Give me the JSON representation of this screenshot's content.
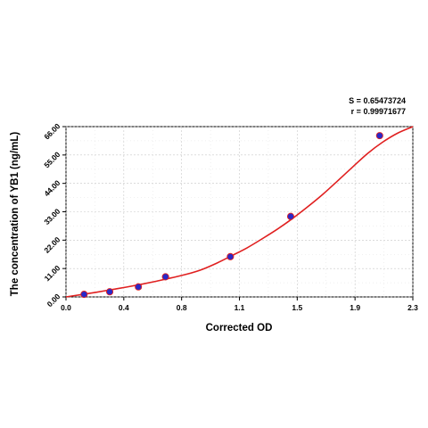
{
  "stats": {
    "s_label": "S = ",
    "s_value": "0.65473724",
    "r_label": "r = ",
    "r_value": "0.99971677"
  },
  "chart_data": {
    "type": "scatter",
    "xlabel": "Corrected OD",
    "ylabel": "The concentration of YB1 (ng/mL)",
    "xlim": [
      0.0,
      2.3
    ],
    "ylim": [
      0.0,
      66.0
    ],
    "x_ticks": [
      "0.0",
      "0.4",
      "0.8",
      "1.1",
      "1.5",
      "1.9",
      "2.3"
    ],
    "y_ticks": [
      "0.00",
      "11.00",
      "22.00",
      "33.00",
      "44.00",
      "55.00",
      "66.00"
    ],
    "grid": true,
    "series": [
      {
        "kind": "points",
        "x": [
          0.12,
          0.29,
          0.48,
          0.66,
          1.09,
          1.49,
          2.08
        ],
        "y": [
          1.0,
          2.0,
          3.9,
          7.8,
          15.6,
          31.2,
          62.5
        ]
      },
      {
        "kind": "fit-curve",
        "x": [
          0.0,
          0.1,
          0.2,
          0.3,
          0.4,
          0.5,
          0.6,
          0.7,
          0.8,
          0.9,
          1.0,
          1.1,
          1.2,
          1.3,
          1.4,
          1.5,
          1.6,
          1.7,
          1.8,
          1.9,
          2.0,
          2.1,
          2.2,
          2.3
        ],
        "y": [
          0.0,
          0.9,
          1.8,
          2.8,
          3.8,
          4.9,
          6.1,
          7.4,
          8.8,
          10.6,
          13.1,
          16.0,
          19.0,
          22.5,
          26.2,
          30.3,
          34.8,
          39.6,
          44.9,
          50.3,
          55.6,
          60.0,
          63.5,
          66.0
        ]
      }
    ],
    "point_color": "#2929c8",
    "curve_color": "#e02020"
  }
}
